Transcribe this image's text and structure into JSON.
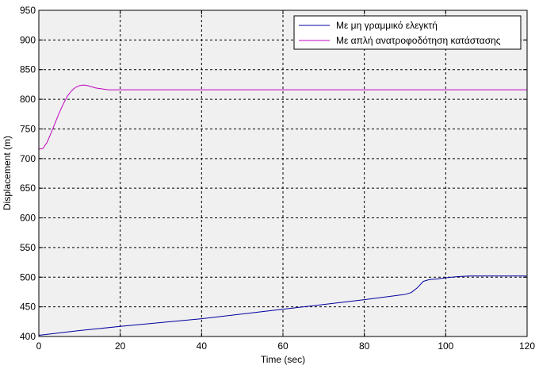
{
  "chart_data": {
    "type": "line",
    "title": "",
    "xlabel": "Time (sec)",
    "ylabel": "Displacement (m)",
    "xlim": [
      0,
      120
    ],
    "ylim": [
      400,
      950
    ],
    "xticks": [
      0,
      20,
      40,
      60,
      80,
      100,
      120
    ],
    "yticks": [
      400,
      450,
      500,
      550,
      600,
      650,
      700,
      750,
      800,
      850,
      900,
      950
    ],
    "grid": true,
    "legend_position": "top-right",
    "series": [
      {
        "name": "Με μη γραμμικό ελεγκτή",
        "color": "#0000a0",
        "x": [
          0,
          10,
          20,
          40,
          60,
          80,
          90,
          91.5,
          93,
          94.5,
          96,
          98,
          100,
          103,
          106,
          110,
          120
        ],
        "y": [
          402,
          410,
          417,
          430,
          446,
          462,
          471,
          474,
          482,
          493,
          496,
          497,
          499,
          501,
          502,
          502,
          502
        ]
      },
      {
        "name": "Με απλή ανατροφοδότηση κατάστασης",
        "color": "#c000c0",
        "x": [
          0,
          1,
          2,
          3,
          4,
          5,
          6,
          7,
          8,
          9,
          10,
          11,
          12,
          13,
          14,
          15,
          16,
          17,
          18,
          19,
          20,
          30,
          60,
          90,
          120
        ],
        "y": [
          716,
          717,
          727,
          743,
          760,
          777,
          792,
          805,
          814,
          820,
          823,
          824,
          823,
          821,
          819,
          818,
          817,
          816,
          816,
          816,
          816,
          816,
          816,
          816,
          816
        ]
      }
    ]
  }
}
